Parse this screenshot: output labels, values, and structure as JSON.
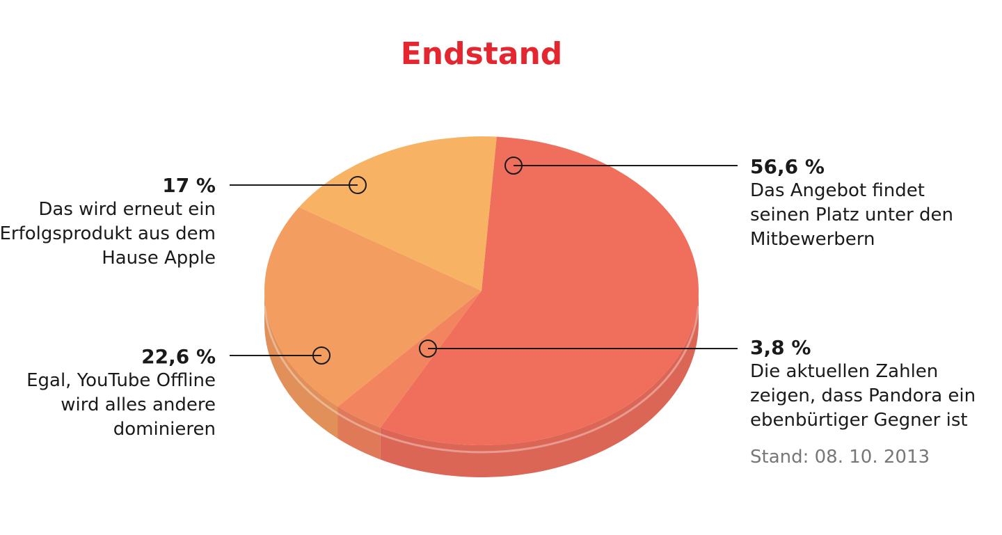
{
  "chart_data": {
    "type": "pie",
    "title": "Endstand",
    "categories": [
      "Das Angebot findet seinen Platz unter den Mitbewerbern",
      "Die aktuellen Zahlen zeigen, dass Pandora ein ebenbürtiger Gegner ist",
      "Egal, YouTube Offline wird alles andere dominieren",
      "Das wird erneut ein Erfolgsprodukt aus dem Hause Apple"
    ],
    "values": [
      56.6,
      3.8,
      22.6,
      17
    ],
    "value_labels": [
      "56,6 %",
      "3,8 %",
      "22,6 %",
      "17 %"
    ],
    "colors": [
      "#ef6f5c",
      "#f2845f",
      "#f49d60",
      "#f7b263"
    ],
    "note": "Stand: 08. 10. 2013"
  }
}
